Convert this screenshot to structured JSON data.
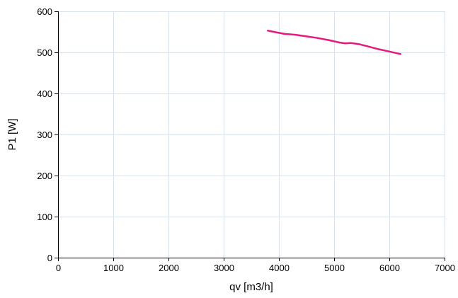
{
  "chart_data": {
    "type": "line",
    "title": "",
    "xlabel": "qv [m3/h]",
    "ylabel": "P1 [W]",
    "xlim": [
      0,
      7000
    ],
    "ylim": [
      0,
      600
    ],
    "x_ticks": [
      0,
      1000,
      2000,
      3000,
      4000,
      5000,
      6000,
      7000
    ],
    "y_ticks": [
      0,
      100,
      200,
      300,
      400,
      500,
      600
    ],
    "x_tick_labels": [
      "0",
      "1000",
      "2000",
      "3000",
      "4000",
      "5000",
      "6000",
      "7000"
    ],
    "y_tick_labels": [
      "0",
      "100",
      "200",
      "300",
      "400",
      "500",
      "600"
    ],
    "grid": true,
    "legend": "none",
    "series": [
      {
        "color": "#e6197f",
        "x": [
          3800,
          3950,
          4100,
          4300,
          4500,
          4700,
          4900,
          5100,
          5200,
          5300,
          5450,
          5600,
          5800,
          6000,
          6200
        ],
        "y": [
          553,
          549,
          545,
          543,
          539,
          535,
          530,
          524,
          522,
          523,
          520,
          515,
          508,
          502,
          496
        ]
      }
    ]
  },
  "colors": {
    "grid": "#d9e1eb",
    "axis": "#000000",
    "line": "#e6197f",
    "background": "#ffffff"
  }
}
